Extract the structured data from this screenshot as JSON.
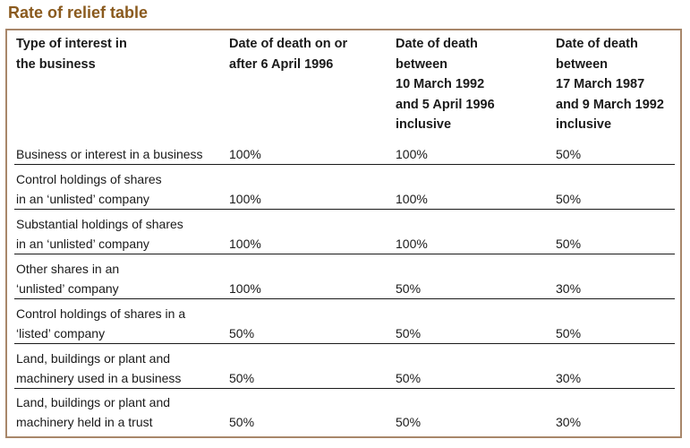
{
  "title": "Rate of relief table",
  "headers": {
    "type": [
      "Type of interest in",
      "the business"
    ],
    "col2": [
      "Date of death on or",
      "after 6 April 1996"
    ],
    "col3": [
      "Date of death",
      "between",
      "10 March 1992",
      "and 5 April 1996",
      "inclusive"
    ],
    "col4": [
      "Date of death",
      "between",
      "17 March 1987",
      "and 9 March 1992",
      "inclusive"
    ]
  },
  "rows": [
    {
      "type": [
        "Business or interest in a business"
      ],
      "col2": "100%",
      "col3": "100%",
      "col4": "50%"
    },
    {
      "type": [
        "Control holdings of shares",
        "in an ‘unlisted’ company"
      ],
      "col2": "100%",
      "col3": "100%",
      "col4": "50%"
    },
    {
      "type": [
        "Substantial holdings of shares",
        "in an ‘unlisted’ company"
      ],
      "col2": "100%",
      "col3": "100%",
      "col4": "50%"
    },
    {
      "type": [
        "Other shares in an",
        "‘unlisted’ company"
      ],
      "col2": "100%",
      "col3": "50%",
      "col4": "30%"
    },
    {
      "type": [
        "Control holdings of shares in a",
        "‘listed’ company"
      ],
      "col2": "50%",
      "col3": "50%",
      "col4": "50%"
    },
    {
      "type": [
        "Land, buildings or plant and",
        "machinery used in a business"
      ],
      "col2": "50%",
      "col3": "50%",
      "col4": "30%"
    },
    {
      "type": [
        "Land, buildings or plant and",
        "machinery held in a trust"
      ],
      "col2": "50%",
      "col3": "50%",
      "col4": "30%"
    }
  ],
  "colors": {
    "title": "#8a5a1e",
    "border": "#a8876a",
    "text": "#1a1a1a"
  }
}
